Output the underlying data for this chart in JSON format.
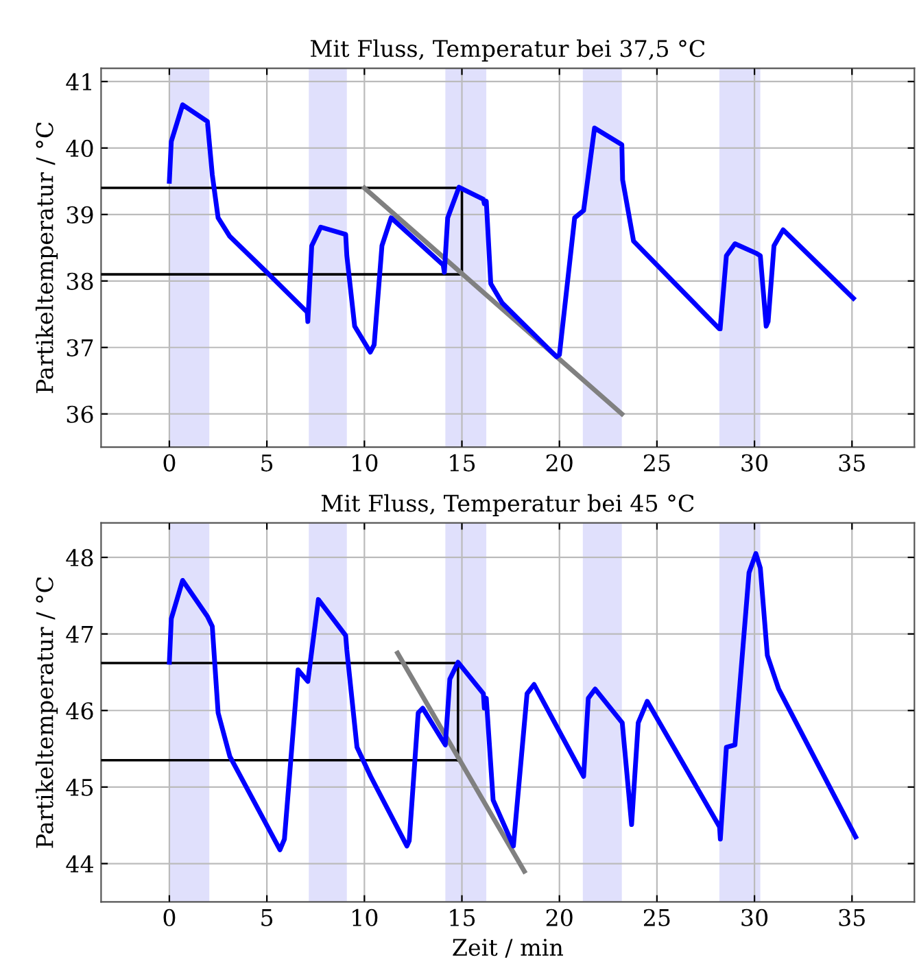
{
  "chart_data": [
    {
      "type": "line",
      "title": "Mit Fluss, Temperatur bei 37,5 °C",
      "ylabel": "Partikeltemperatur / °C",
      "xlim": [
        -3.5,
        38.2
      ],
      "xticks": [
        0,
        5,
        10,
        15,
        20,
        25,
        30,
        35
      ],
      "ylim": [
        35.5,
        41.2
      ],
      "yticks": [
        36,
        37,
        38,
        39,
        40,
        41
      ],
      "grid": true,
      "bands": [
        {
          "axis": "x",
          "from": 0,
          "to": 2.05,
          "color": "#e0e0fc"
        },
        {
          "axis": "x",
          "from": 7.15,
          "to": 9.1,
          "color": "#e0e0fc"
        },
        {
          "axis": "x",
          "from": 14.15,
          "to": 16.25,
          "color": "#e0e0fc"
        },
        {
          "axis": "x",
          "from": 21.2,
          "to": 23.2,
          "color": "#e0e0fc"
        },
        {
          "axis": "x",
          "from": 28.2,
          "to": 30.3,
          "color": "#e0e0fc"
        }
      ],
      "series": [
        {
          "color": "#0000ff",
          "x": [
            0,
            0.1,
            0.68,
            1.95,
            2.2,
            2.5,
            3.1,
            5.1,
            7.07,
            7.1,
            7.3,
            7.76,
            9.04,
            9.1,
            9.5,
            10.3,
            10.5,
            10.9,
            11.37,
            14.04,
            14.1,
            14.27,
            14.85,
            16.1,
            16.15,
            16.25,
            16.48,
            17.06,
            19.85,
            20.0,
            20.78,
            21.24,
            21.8,
            23.2,
            23.24,
            23.8,
            28.2,
            28.24,
            28.56,
            29.0,
            30.07,
            30.3,
            30.6,
            30.7,
            31.0,
            31.47,
            35.07
          ],
          "values": [
            39.5,
            40.1,
            40.65,
            40.4,
            39.6,
            38.95,
            38.67,
            38.1,
            37.53,
            37.39,
            38.53,
            38.81,
            38.7,
            38.38,
            37.32,
            36.93,
            37.04,
            38.53,
            38.95,
            38.24,
            38.13,
            38.95,
            39.41,
            39.23,
            39.16,
            39.2,
            37.96,
            37.67,
            36.86,
            36.89,
            38.95,
            39.06,
            40.3,
            40.05,
            39.52,
            38.6,
            37.28,
            37.28,
            38.38,
            38.56,
            38.42,
            38.38,
            37.32,
            37.39,
            38.53,
            38.77,
            37.74
          ]
        },
        {
          "color": "#000000",
          "x": [
            -3.5,
            15
          ],
          "values": [
            39.4,
            39.4
          ]
        },
        {
          "color": "#000000",
          "x": [
            -3.5,
            15
          ],
          "values": [
            38.1,
            38.1
          ]
        },
        {
          "color": "#000000",
          "x": [
            15,
            15
          ],
          "values": [
            38.1,
            39.4
          ]
        },
        {
          "color": "#808080",
          "x": [
            10,
            23.2
          ],
          "values": [
            39.4,
            36.0
          ]
        }
      ]
    },
    {
      "type": "line",
      "title": "Mit Fluss, Temperatur bei 45 °C",
      "xlabel": "Zeit / min",
      "ylabel": "Partikeltemperatur / °C",
      "xlim": [
        -3.5,
        38.2
      ],
      "xticks": [
        0,
        5,
        10,
        15,
        20,
        25,
        30,
        35
      ],
      "ylim": [
        43.5,
        48.45
      ],
      "yticks": [
        44,
        45,
        46,
        47,
        48
      ],
      "grid": true,
      "bands": [
        {
          "axis": "x",
          "from": 0,
          "to": 2.05,
          "color": "#e0e0fc"
        },
        {
          "axis": "x",
          "from": 7.15,
          "to": 9.1,
          "color": "#e0e0fc"
        },
        {
          "axis": "x",
          "from": 14.15,
          "to": 16.25,
          "color": "#e0e0fc"
        },
        {
          "axis": "x",
          "from": 21.2,
          "to": 23.2,
          "color": "#e0e0fc"
        },
        {
          "axis": "x",
          "from": 28.2,
          "to": 30.3,
          "color": "#e0e0fc"
        }
      ],
      "series": [
        {
          "color": "#0000ff",
          "x": [
            0,
            0.1,
            0.68,
            1.95,
            2.2,
            2.5,
            3.1,
            5.67,
            5.9,
            6.6,
            6.7,
            7.1,
            7.64,
            9.04,
            9.1,
            9.62,
            10.32,
            12.18,
            12.3,
            12.76,
            12.99,
            14.15,
            14.38,
            14.8,
            16.1,
            16.15,
            16.25,
            16.6,
            17.64,
            18.34,
            18.7,
            21.24,
            21.48,
            21.83,
            23.22,
            23.7,
            24.04,
            24.5,
            28.21,
            28.25,
            28.56,
            29.0,
            29.72,
            30.07,
            30.3,
            30.66,
            31.24,
            35.19
          ],
          "values": [
            46.63,
            47.2,
            47.7,
            47.23,
            47.1,
            45.97,
            45.4,
            44.18,
            44.32,
            46.53,
            46.5,
            46.38,
            47.45,
            46.98,
            46.79,
            45.52,
            45.14,
            44.23,
            44.3,
            45.97,
            46.03,
            45.55,
            46.41,
            46.63,
            46.22,
            46.03,
            46.16,
            44.83,
            44.23,
            46.22,
            46.34,
            45.14,
            46.16,
            46.28,
            45.84,
            44.51,
            45.84,
            46.12,
            44.48,
            44.32,
            45.52,
            45.55,
            47.8,
            48.05,
            47.86,
            46.72,
            46.28,
            44.35
          ]
        },
        {
          "color": "#000000",
          "x": [
            -3.5,
            14.8
          ],
          "values": [
            46.62,
            46.62
          ]
        },
        {
          "color": "#000000",
          "x": [
            -3.5,
            14.8
          ],
          "values": [
            45.35,
            45.35
          ]
        },
        {
          "color": "#000000",
          "x": [
            14.8,
            14.8
          ],
          "values": [
            45.35,
            46.62
          ]
        },
        {
          "color": "#808080",
          "x": [
            11.7,
            18.2
          ],
          "values": [
            46.75,
            43.9
          ]
        }
      ]
    }
  ]
}
